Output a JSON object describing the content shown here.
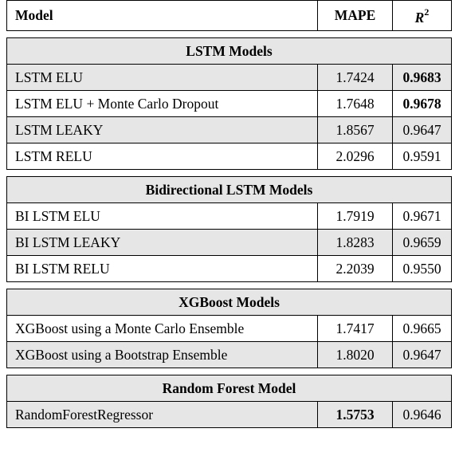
{
  "header": {
    "model": "Model",
    "mape": "MAPE",
    "r2_symbol": "R",
    "r2_exp": "2"
  },
  "sections": [
    {
      "title": "LSTM Models",
      "rows": [
        {
          "model": "LSTM ELU",
          "mape": "1.7424",
          "r2": "0.9683",
          "mape_bold": false,
          "r2_bold": true,
          "shaded": true
        },
        {
          "model": "LSTM ELU + Monte Carlo Dropout",
          "mape": "1.7648",
          "r2": "0.9678",
          "mape_bold": false,
          "r2_bold": true,
          "shaded": false
        },
        {
          "model": "LSTM LEAKY",
          "mape": "1.8567",
          "r2": "0.9647",
          "mape_bold": false,
          "r2_bold": false,
          "shaded": true
        },
        {
          "model": "LSTM RELU",
          "mape": "2.0296",
          "r2": "0.9591",
          "mape_bold": false,
          "r2_bold": false,
          "shaded": false
        }
      ]
    },
    {
      "title": "Bidirectional LSTM Models",
      "rows": [
        {
          "model": "BI LSTM ELU",
          "mape": "1.7919",
          "r2": "0.9671",
          "mape_bold": false,
          "r2_bold": false,
          "shaded": false
        },
        {
          "model": "BI LSTM LEAKY",
          "mape": "1.8283",
          "r2": "0.9659",
          "mape_bold": false,
          "r2_bold": false,
          "shaded": true
        },
        {
          "model": "BI LSTM RELU",
          "mape": "2.2039",
          "r2": "0.9550",
          "mape_bold": false,
          "r2_bold": false,
          "shaded": false
        }
      ]
    },
    {
      "title": "XGBoost Models",
      "rows": [
        {
          "model": "XGBoost using a Monte Carlo Ensemble",
          "mape": "1.7417",
          "r2": "0.9665",
          "mape_bold": false,
          "r2_bold": false,
          "shaded": false
        },
        {
          "model": "XGBoost using a Bootstrap Ensemble",
          "mape": "1.8020",
          "r2": "0.9647",
          "mape_bold": false,
          "r2_bold": false,
          "shaded": true
        }
      ]
    },
    {
      "title": "Random Forest Model",
      "rows": [
        {
          "model": "RandomForestRegressor",
          "mape": "1.5753",
          "r2": "0.9646",
          "mape_bold": true,
          "r2_bold": false,
          "shaded": true
        }
      ]
    }
  ]
}
